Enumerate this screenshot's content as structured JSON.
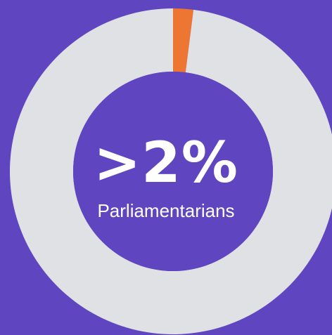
{
  "colors": {
    "background": "#5f45c0",
    "ring_track": "#e0e1e4",
    "ring_highlight": "#ec7632",
    "text": "#ffffff"
  },
  "center": {
    "value_text": ">2%",
    "caption": "Parliamentarians"
  },
  "chart_data": {
    "type": "pie",
    "style": "donut",
    "title": "",
    "slices": [
      {
        "label": "Parliamentarians",
        "value": 2,
        "color": "#ec7632"
      },
      {
        "label": "",
        "value": 98,
        "color": "#e0e1e4"
      }
    ],
    "start_angle_deg": 0,
    "direction": "clockwise"
  }
}
